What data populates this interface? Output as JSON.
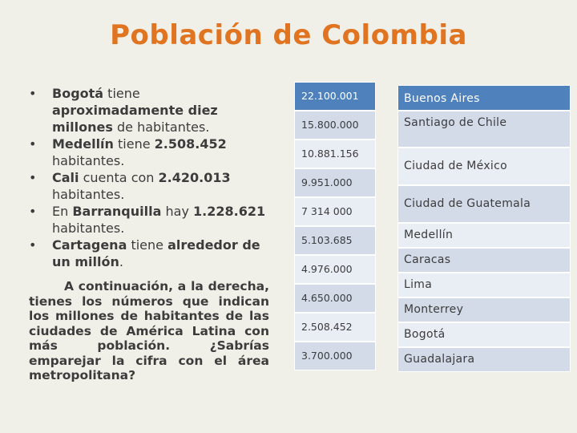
{
  "title": "Población de Colombia",
  "bullets": [
    [
      {
        "t": "Bogotá",
        "b": true
      },
      {
        "t": " tiene ",
        "b": false
      },
      {
        "t": "aproximadamente diez millones",
        "b": true
      },
      {
        "t": " de habitantes.",
        "b": false
      }
    ],
    [
      {
        "t": "Medellín",
        "b": true
      },
      {
        "t": " tiene ",
        "b": false
      },
      {
        "t": "2.508.452",
        "b": true
      },
      {
        "t": " habitantes.",
        "b": false
      }
    ],
    [
      {
        "t": "Cali",
        "b": true
      },
      {
        "t": " cuenta con ",
        "b": false
      },
      {
        "t": "2.420.013",
        "b": true
      },
      {
        "t": " habitantes.",
        "b": false
      }
    ],
    [
      {
        "t": "En ",
        "b": false
      },
      {
        "t": "Barranquilla",
        "b": true
      },
      {
        "t": " hay ",
        "b": false
      },
      {
        "t": "1.228.621",
        "b": true
      },
      {
        "t": " habitantes.",
        "b": false
      }
    ],
    [
      {
        "t": "Cartagena",
        "b": true
      },
      {
        "t": " tiene ",
        "b": false
      },
      {
        "t": "alrededor de un millón",
        "b": true
      },
      {
        "t": ".",
        "b": false
      }
    ]
  ],
  "paragraph": "A continuación, a la derecha, tienes los números que indican los millones de habitantes de las ciudades de América Latina con más población. ¿Sabrías emparejar la cifra con el área metropolitana?",
  "numbers": [
    "22.100.001",
    "15.800.000",
    "10.881.156",
    "9.951.000",
    "7 314 000",
    "5.103.685",
    "4.976.000",
    "4.650.000",
    "2.508.452",
    "3.700.000"
  ],
  "cities": [
    "Buenos Aires",
    "Santiago de Chile",
    "Ciudad de México",
    "Ciudad de Guatemala",
    "Medellín",
    "Caracas",
    "Lima",
    "Monterrey",
    "Bogotá",
    "Guadalajara"
  ],
  "colors": {
    "title": "#e07420",
    "header": "#4f81bd",
    "row_light": "#e9edf4",
    "row_dark": "#d3dbe9",
    "background": "#f1f0e8"
  }
}
